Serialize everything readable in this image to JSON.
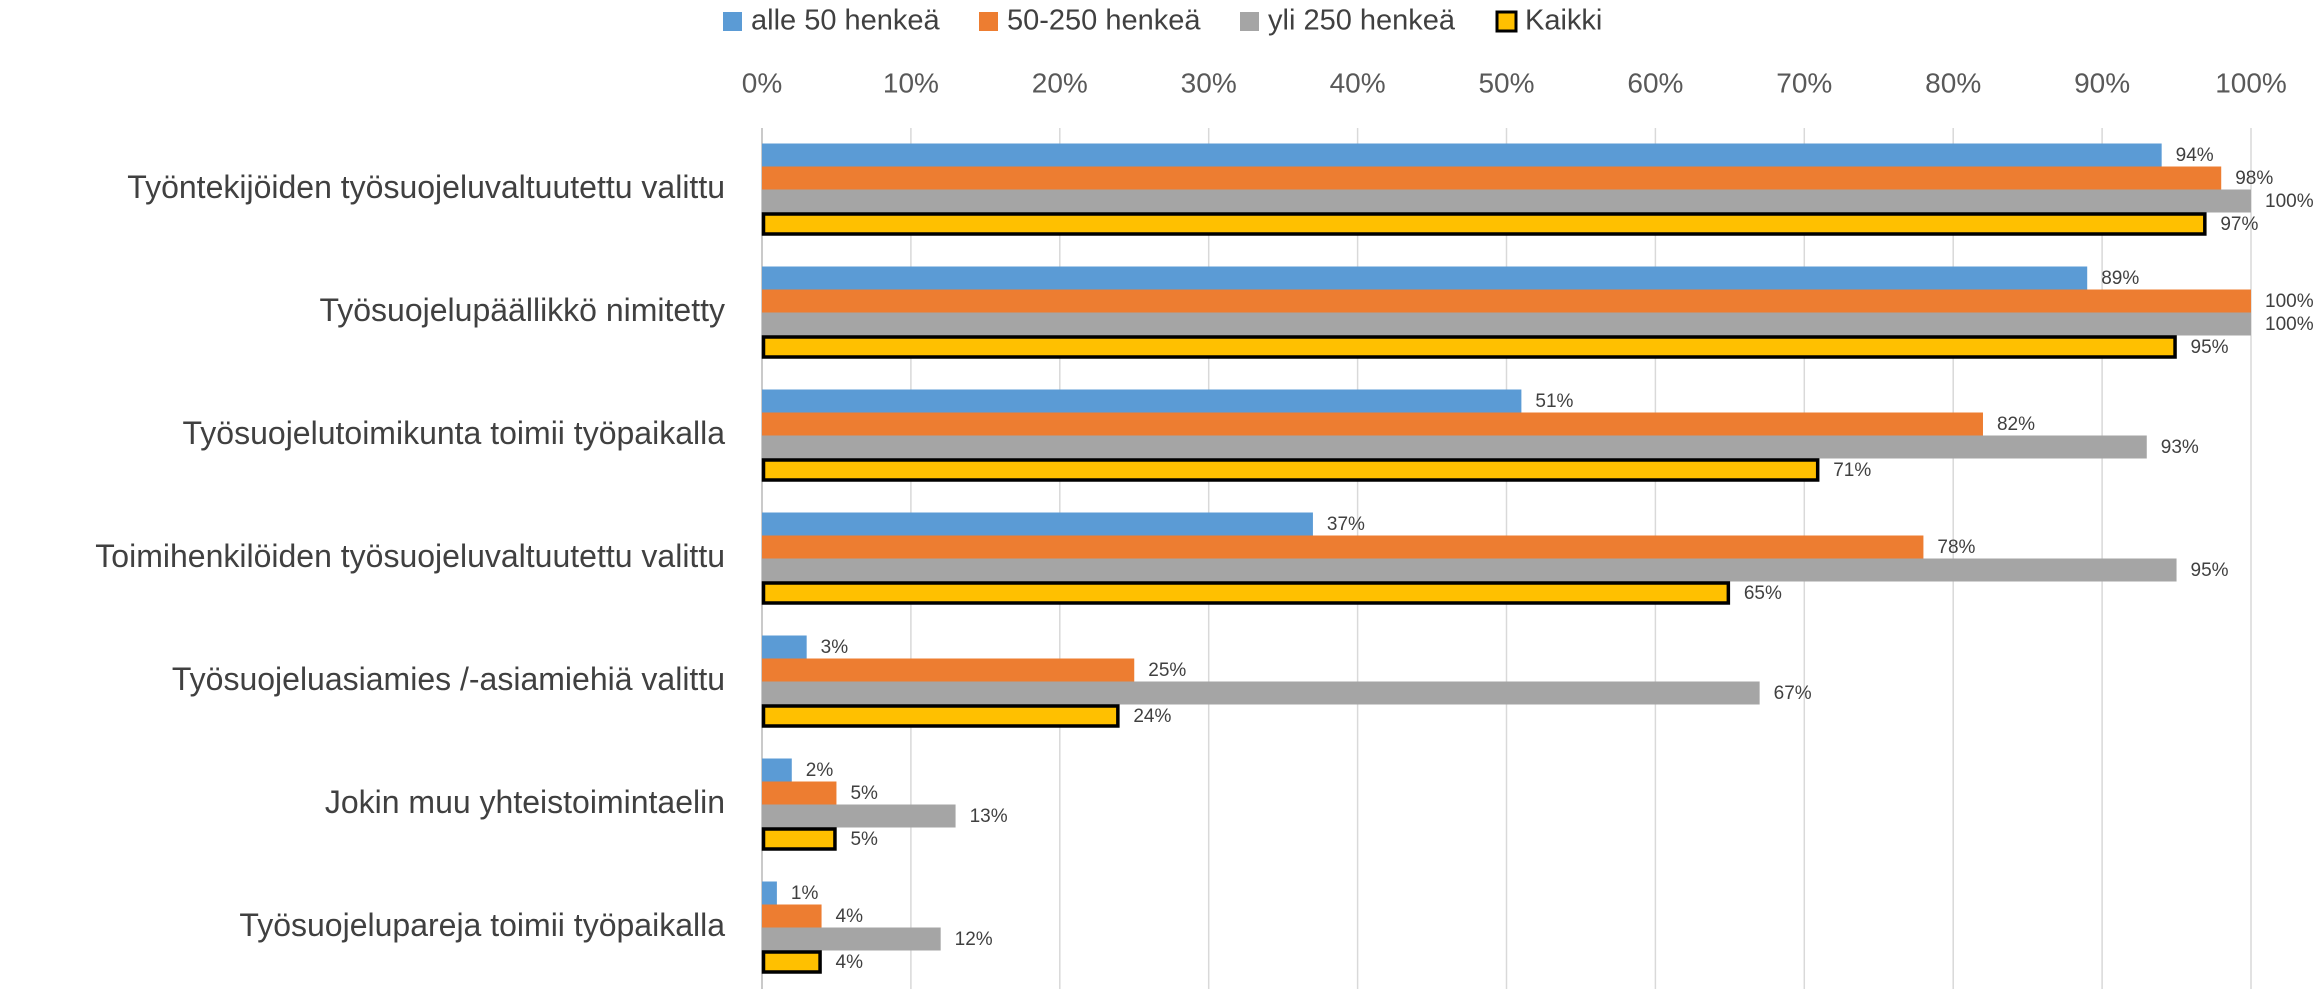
{
  "chart_data": {
    "type": "bar",
    "orientation": "horizontal",
    "categories": [
      "Työntekijöiden työsuojeluvaltuutettu valittu",
      "Työsuojelupäällikkö nimitetty",
      "Työsuojelutoimikunta toimii työpaikalla",
      "Toimihenkilöiden työsuojeluvaltuutettu valittu",
      "Työsuojeluasiamies /-asiamiehiä valittu",
      "Jokin muu yhteistoimintaelin",
      "Työsuojelupareja toimii työpaikalla"
    ],
    "series": [
      {
        "name": "alle 50 henkeä",
        "color": "#5b9bd5",
        "values": [
          94,
          89,
          51,
          37,
          3,
          2,
          1
        ],
        "value_labels": [
          "94%",
          "89%",
          "51%",
          "37%",
          "3%",
          "2%",
          "1%"
        ]
      },
      {
        "name": "50-250 henkeä",
        "color": "#ed7d31",
        "values": [
          98,
          100,
          82,
          78,
          25,
          5,
          4
        ],
        "value_labels": [
          "98%",
          "100%",
          "82%",
          "78%",
          "25%",
          "5%",
          "4%"
        ]
      },
      {
        "name": "yli 250 henkeä",
        "color": "#a5a5a5",
        "values": [
          100,
          100,
          93,
          95,
          67,
          13,
          12
        ],
        "value_labels": [
          "100%",
          "100%",
          "93%",
          "95%",
          "67%",
          "13%",
          "12%"
        ]
      },
      {
        "name": "Kaikki",
        "color": "#ffc000",
        "border": "#000000",
        "values": [
          97,
          95,
          71,
          65,
          24,
          5,
          4
        ],
        "value_labels": [
          "97%",
          "95%",
          "71%",
          "65%",
          "24%",
          "5%",
          "4%"
        ]
      }
    ],
    "xlim": [
      0,
      100
    ],
    "xticks": [
      {
        "value": 0,
        "label": "0%"
      },
      {
        "value": 10,
        "label": "10%"
      },
      {
        "value": 20,
        "label": "20%"
      },
      {
        "value": 30,
        "label": "30%"
      },
      {
        "value": 40,
        "label": "40%"
      },
      {
        "value": 50,
        "label": "50%"
      },
      {
        "value": 60,
        "label": "60%"
      },
      {
        "value": 70,
        "label": "70%"
      },
      {
        "value": 80,
        "label": "80%"
      },
      {
        "value": 90,
        "label": "90%"
      },
      {
        "value": 100,
        "label": "100%"
      }
    ],
    "grid": true,
    "legend": "top"
  }
}
